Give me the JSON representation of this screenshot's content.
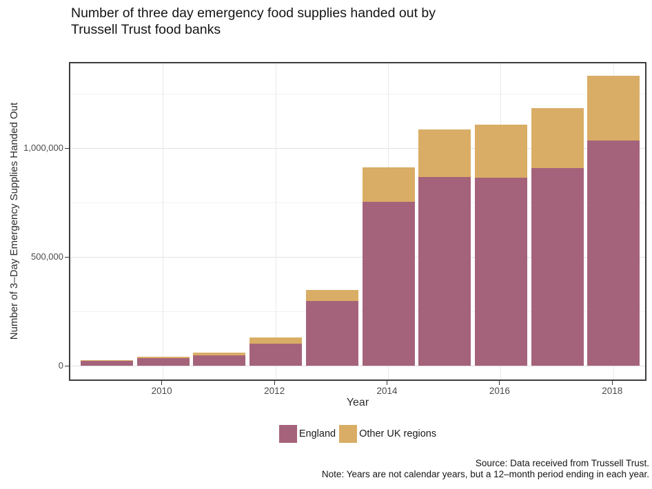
{
  "page": {
    "title_lines": [
      "Number of three day emergency food supplies handed out by",
      "Trussell Trust food banks"
    ],
    "caption_lines": [
      "Source: Data received from Trussell Trust.",
      "Note: Years are not calendar years, but a 12–month period ending in each year."
    ]
  },
  "chart_data": {
    "type": "bar",
    "stacked": true,
    "title": "Number of three day emergency food supplies handed out by Trussell Trust food banks",
    "xlabel": "Year",
    "ylabel": "Number of 3–Day Emergency Supplies Handed Out",
    "categories": [
      "2009",
      "2010",
      "2011",
      "2012",
      "2013",
      "2014",
      "2015",
      "2016",
      "2017",
      "2018"
    ],
    "series": [
      {
        "name": "England",
        "color": "#A5637B",
        "values": [
          24000,
          36000,
          49000,
          101000,
          297000,
          753000,
          867000,
          863000,
          908000,
          1035000
        ]
      },
      {
        "name": "Other UK regions",
        "color": "#D9AD65",
        "values": [
          2000,
          5000,
          12000,
          28000,
          50000,
          160000,
          218000,
          246000,
          275000,
          298000
        ]
      }
    ],
    "stacked_totals": [
      26000,
      41000,
      61000,
      129000,
      347000,
      913000,
      1085000,
      1109000,
      1183000,
      1333000
    ],
    "ylim": [
      0,
      1400000
    ],
    "yticks": [
      {
        "value": 0,
        "label": "0"
      },
      {
        "value": 500000,
        "label": "500,000"
      },
      {
        "value": 1000000,
        "label": "1,000,000"
      }
    ],
    "yticks_minor": [
      250000,
      750000,
      1250000
    ],
    "xticks": [
      {
        "index": 1,
        "label": "2010"
      },
      {
        "index": 3,
        "label": "2012"
      },
      {
        "index": 5,
        "label": "2014"
      },
      {
        "index": 7,
        "label": "2016"
      },
      {
        "index": 9,
        "label": "2018"
      }
    ],
    "grid": true,
    "legend_position": "bottom"
  }
}
